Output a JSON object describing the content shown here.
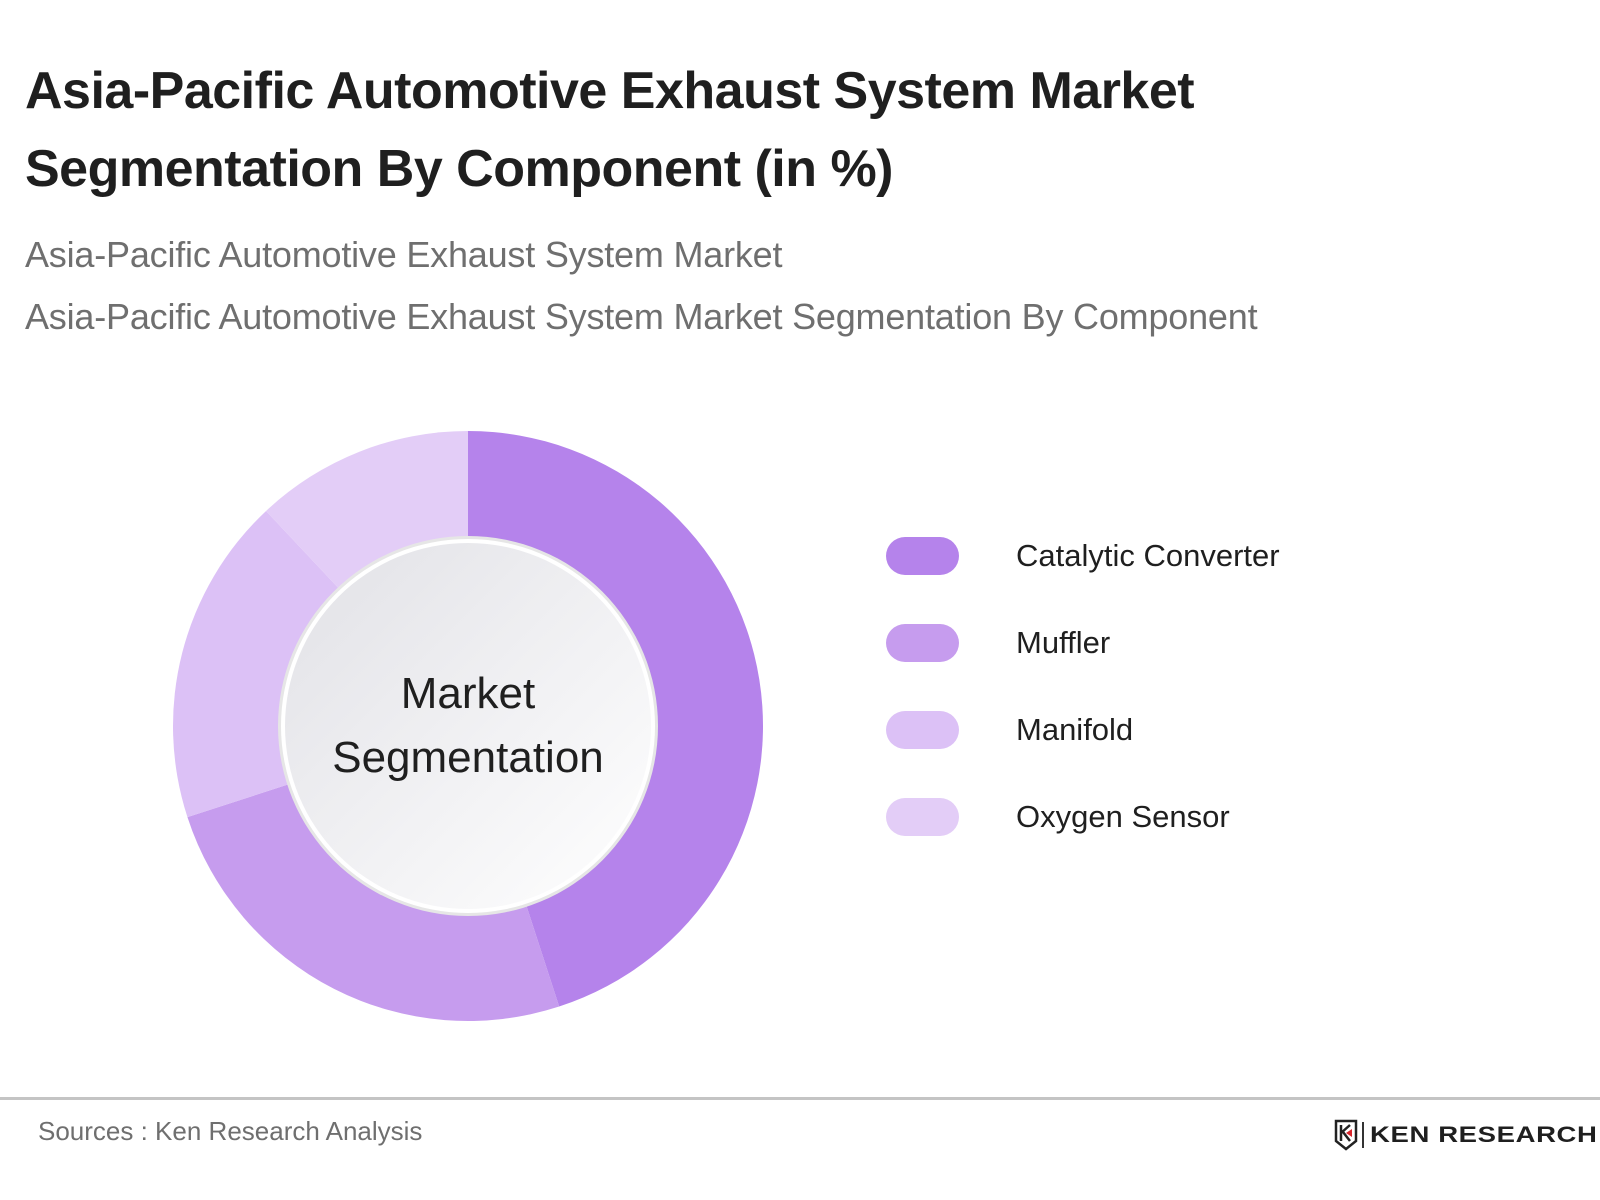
{
  "header": {
    "title": "Asia-Pacific Automotive Exhaust System Market Segmentation By Component (in %)",
    "subtitle_1": "Asia-Pacific Automotive Exhaust System Market",
    "subtitle_2": "Asia-Pacific Automotive Exhaust System Market Segmentation By Component"
  },
  "chart": {
    "center_label_line1": "Market",
    "center_label_line2": "Segmentation"
  },
  "legend": [
    {
      "label": "Catalytic Converter",
      "color": "#B583EB"
    },
    {
      "label": "Muffler",
      "color": "#C69CEE"
    },
    {
      "label": "Manifold",
      "color": "#DCC1F6"
    },
    {
      "label": "Oxygen Sensor",
      "color": "#E3CDF7"
    }
  ],
  "footer": {
    "source": "Sources : Ken Research Analysis",
    "logo_text": "KEN RESEARCH",
    "logo_icon": "ken-research-k-shield-icon"
  },
  "chart_data": {
    "type": "pie",
    "variant": "donut",
    "title": "Asia-Pacific Automotive Exhaust System Market Segmentation By Component (in %)",
    "categories": [
      "Catalytic Converter",
      "Muffler",
      "Manifold",
      "Oxygen Sensor"
    ],
    "values": [
      45,
      25,
      18,
      12
    ],
    "colors": [
      "#B583EB",
      "#C69CEE",
      "#DCC1F6",
      "#E3CDF7"
    ],
    "start_angle": "12 o'clock, clockwise",
    "center_label": "Market Segmentation",
    "legend_position": "right",
    "unit": "%"
  }
}
